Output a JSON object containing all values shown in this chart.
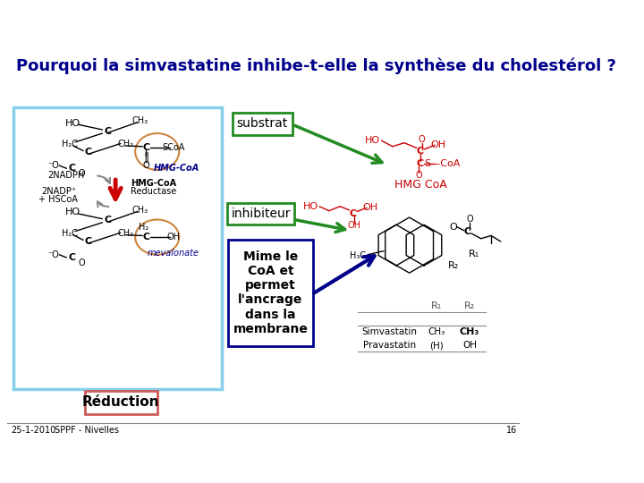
{
  "title": "Pourquoi la simvastatine inhibe-t-elle la synthèse du cholestérol ?",
  "title_color": "#00008B",
  "title_fontsize": 13,
  "background_color": "#ffffff",
  "slide_number": "16",
  "date_text": "25-1-2010",
  "source_text": "SPPF - Nivelles",
  "left_box_color": "#87CEEB",
  "substrat_label": "substrat",
  "substrat_box_color": "#228B22",
  "inhibiteur_label": "inhibiteur",
  "inhibiteur_box_color": "#228B22",
  "reduction_label": "Réduction",
  "reduction_box_color": "#CD5C5C",
  "mime_text": "Mime le\nCoA et\npermet\nl'ancrage\ndans la\nmembrane",
  "mime_box_color": "#00008B",
  "arrow_color_red": "#CC0000",
  "arrow_color_green": "#228B22",
  "arrow_color_blue": "#00008B",
  "ellipse_color": "#CD853F",
  "mol_color": "#CC0000",
  "black": "#000000"
}
